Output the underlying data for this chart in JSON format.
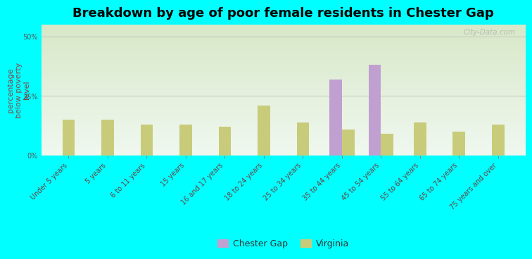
{
  "title": "Breakdown by age of poor female residents in Chester Gap",
  "ylabel": "percentage\nbelow poverty\nlevel",
  "categories": [
    "Under 5 years",
    "5 years",
    "6 to 11 years",
    "15 years",
    "16 and 17 years",
    "18 to 24 years",
    "25 to 34 years",
    "35 to 44 years",
    "45 to 54 years",
    "55 to 64 years",
    "65 to 74 years",
    "75 years and over"
  ],
  "virginia_values": [
    15.0,
    15.0,
    13.0,
    13.0,
    12.0,
    21.0,
    14.0,
    11.0,
    9.0,
    14.0,
    10.0,
    13.0
  ],
  "chester_gap_values": [
    0,
    0,
    0,
    0,
    0,
    0,
    0,
    32.0,
    38.0,
    0,
    0,
    0
  ],
  "virginia_color": "#c8cc7a",
  "chester_gap_color": "#c0a0d0",
  "background_color": "#00ffff",
  "plot_bg_color_top": "#d8e8c8",
  "plot_bg_color_bottom": "#f0f8f0",
  "yticks": [
    0,
    25,
    50
  ],
  "ytick_labels": [
    "0%",
    "25%",
    "50%"
  ],
  "ylim": [
    0,
    55
  ],
  "bar_width": 0.32,
  "title_fontsize": 13,
  "axis_label_fontsize": 8,
  "tick_fontsize": 7,
  "watermark": "City-Data.com"
}
